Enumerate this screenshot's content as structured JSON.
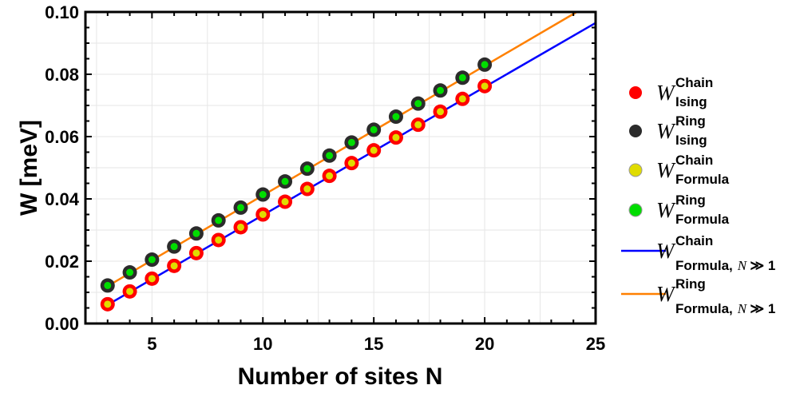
{
  "chart_data": {
    "type": "scatter",
    "xlabel": "Number of sites N",
    "ylabel": "W [meV]",
    "xlim": [
      2,
      25
    ],
    "ylim": [
      0,
      0.1
    ],
    "xticks": [
      "5",
      "10",
      "15",
      "20",
      "25"
    ],
    "yticks": [
      "0.00",
      "0.02",
      "0.04",
      "0.06",
      "0.08",
      "0.10"
    ],
    "grid": true,
    "legend_position": "right",
    "x": [
      3,
      4,
      5,
      6,
      7,
      8,
      9,
      10,
      11,
      12,
      13,
      14,
      15,
      16,
      17,
      18,
      19,
      20
    ],
    "series": [
      {
        "name_main": "W",
        "name_sup": "Chain",
        "name_sub": "Ising",
        "kind": "points",
        "color": "#ff0000",
        "values": [
          0.0062,
          0.0103,
          0.0144,
          0.0185,
          0.0226,
          0.0268,
          0.0309,
          0.035,
          0.0391,
          0.0432,
          0.0474,
          0.0515,
          0.0556,
          0.0597,
          0.0638,
          0.068,
          0.0721,
          0.0762
        ]
      },
      {
        "name_main": "W",
        "name_sup": "Ring",
        "name_sub": "Ising",
        "kind": "points",
        "color": "#2b2b2b",
        "values": [
          0.0122,
          0.0164,
          0.0205,
          0.0247,
          0.0289,
          0.0331,
          0.0372,
          0.0414,
          0.0456,
          0.0497,
          0.0539,
          0.0581,
          0.0622,
          0.0664,
          0.0706,
          0.0748,
          0.0789,
          0.0831
        ]
      },
      {
        "name_main": "W",
        "name_sup": "Chain",
        "name_sub": "Formula",
        "kind": "points",
        "color": "#e0dc00",
        "values": [
          0.0062,
          0.0103,
          0.0144,
          0.0185,
          0.0226,
          0.0268,
          0.0309,
          0.035,
          0.0391,
          0.0432,
          0.0474,
          0.0515,
          0.0556,
          0.0597,
          0.0638,
          0.068,
          0.0721,
          0.0762
        ]
      },
      {
        "name_main": "W",
        "name_sup": "Ring",
        "name_sub": "Formula",
        "kind": "points",
        "color": "#00dd00",
        "values": [
          0.0122,
          0.0164,
          0.0205,
          0.0247,
          0.0289,
          0.0331,
          0.0372,
          0.0414,
          0.0456,
          0.0497,
          0.0539,
          0.0581,
          0.0622,
          0.0664,
          0.0706,
          0.0748,
          0.0789,
          0.0831
        ]
      },
      {
        "name_main": "W",
        "name_sup": "Chain",
        "name_sub": "Formula,",
        "name_sub_extra": "N ≫ 1",
        "kind": "line",
        "color": "#0000ff",
        "x": [
          3,
          25
        ],
        "values": [
          0.006,
          0.0965
        ]
      },
      {
        "name_main": "W",
        "name_sup": "Ring",
        "name_sub": "Formula,",
        "name_sub_extra": "N ≫ 1",
        "kind": "line",
        "color": "#ff8000",
        "x": [
          3,
          24.15
        ],
        "values": [
          0.012,
          0.1
        ]
      }
    ]
  }
}
